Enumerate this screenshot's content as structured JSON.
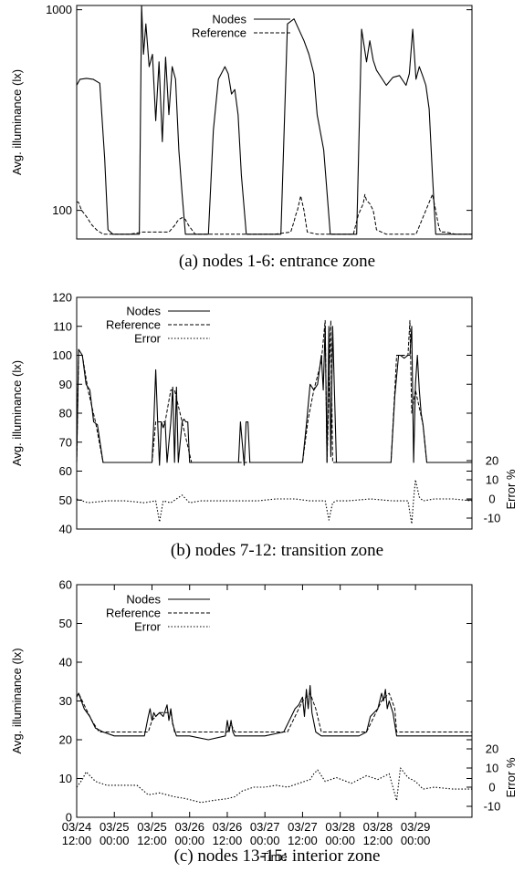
{
  "chart_data": [
    {
      "type": "line",
      "caption": "(a) nodes 1-6: entrance zone",
      "ylabel": "Avg. illuminance (lx)",
      "yscale": "log",
      "ylim": [
        72,
        1050
      ],
      "yticks": [
        {
          "v": 100,
          "label": "100"
        },
        {
          "v": 1000,
          "label": "1000"
        }
      ],
      "legend_position": "top-center",
      "series": [
        {
          "name": "Nodes",
          "style": "solid",
          "x": [
            0,
            0.1,
            0.3,
            0.5,
            0.7,
            0.85,
            0.95,
            1.1,
            1.5,
            1.9,
            1.97,
            2.03,
            2.1,
            2.2,
            2.3,
            2.4,
            2.5,
            2.6,
            2.7,
            2.8,
            2.9,
            3.0,
            3.1,
            3.2,
            3.3,
            3.4,
            3.5,
            3.6,
            3.7,
            4.0,
            4.15,
            4.3,
            4.5,
            4.6,
            4.7,
            4.8,
            4.9,
            5.0,
            5.15,
            5.3,
            5.4,
            5.5,
            5.6,
            5.7,
            5.9,
            6.2,
            6.4,
            6.6,
            6.9,
            7.05,
            7.2,
            7.3,
            7.5,
            7.7,
            7.9,
            8.05,
            8.2,
            8.35,
            8.5,
            8.65,
            8.8,
            8.9,
            9.0,
            9.1,
            9.4,
            9.6,
            9.8,
            10.0,
            10.1,
            10.2,
            10.3,
            10.4,
            10.5,
            10.6,
            10.7,
            10.8,
            10.9,
            11.0,
            11.1,
            11.2,
            11.5,
            12.0
          ],
          "y": [
            420,
            450,
            455,
            450,
            430,
            180,
            80,
            76,
            76,
            76,
            1050,
            600,
            850,
            520,
            600,
            280,
            550,
            220,
            580,
            300,
            520,
            450,
            200,
            120,
            76,
            76,
            76,
            76,
            76,
            76,
            250,
            450,
            520,
            480,
            380,
            400,
            300,
            150,
            76,
            76,
            76,
            76,
            76,
            76,
            76,
            76,
            850,
            900,
            700,
            600,
            480,
            300,
            200,
            76,
            76,
            76,
            76,
            76,
            76,
            800,
            550,
            700,
            560,
            500,
            420,
            460,
            470,
            420,
            480,
            800,
            450,
            520,
            470,
            420,
            320,
            150,
            76,
            76,
            76,
            76,
            76,
            76
          ]
        },
        {
          "name": "Reference",
          "style": "dashed",
          "x": [
            0,
            0.05,
            0.15,
            0.3,
            0.45,
            0.6,
            0.8,
            1.1,
            1.6,
            2.0,
            2.5,
            2.8,
            3.0,
            3.05,
            3.1,
            3.2,
            3.3,
            3.4,
            3.6,
            4.5,
            5.0,
            6.0,
            6.5,
            6.6,
            6.65,
            6.7,
            6.8,
            6.9,
            6.95,
            7.0,
            7.3,
            8.4,
            8.55,
            8.7,
            8.75,
            8.8,
            8.9,
            9.0,
            9.05,
            9.1,
            9.4,
            10.3,
            10.6,
            10.8,
            10.9,
            10.95,
            11.0,
            11.05,
            11.2,
            11.5,
            12.0
          ],
          "y": [
            110,
            110,
            100,
            93,
            85,
            80,
            76,
            76,
            76,
            78,
            78,
            78,
            85,
            88,
            90,
            92,
            90,
            84,
            76,
            76,
            76,
            76,
            78,
            88,
            95,
            100,
            118,
            100,
            88,
            78,
            76,
            76,
            95,
            108,
            120,
            112,
            108,
            100,
            90,
            80,
            76,
            76,
            100,
            120,
            100,
            90,
            82,
            78,
            78,
            76,
            76
          ]
        }
      ]
    },
    {
      "type": "line",
      "caption": "(b) nodes 7-12: transition zone",
      "ylabel": "Avg. illuminance (lx)",
      "ylim": [
        40,
        120
      ],
      "yticks": [
        40,
        50,
        60,
        70,
        80,
        90,
        100,
        110,
        120
      ],
      "y2label": "Error %",
      "y2ticks": [
        -10,
        0,
        10,
        20
      ],
      "y2lim": [
        -10,
        20
      ],
      "legend_position": "top-left",
      "series": [
        {
          "name": "Nodes",
          "style": "solid",
          "x": [
            0,
            0.05,
            0.15,
            0.25,
            0.35,
            0.45,
            0.55,
            0.7,
            1.2,
            2.0,
            2.05,
            2.1,
            2.15,
            2.2,
            2.25,
            2.3,
            2.35,
            2.4,
            2.5,
            2.55,
            2.6,
            2.65,
            2.7,
            2.8,
            2.85,
            2.9,
            2.95,
            3.0,
            3.05,
            3.1,
            3.2,
            4.2,
            4.3,
            4.35,
            4.45,
            4.5,
            4.55,
            4.6,
            4.7,
            5.5,
            6.0,
            6.1,
            6.2,
            6.3,
            6.4,
            6.5,
            6.55,
            6.6,
            6.65,
            6.7,
            6.75,
            6.8,
            6.9,
            7.0,
            7.05,
            7.1,
            7.2,
            7.3,
            8.0,
            8.35,
            8.45,
            8.55,
            8.6,
            8.7,
            8.8,
            8.85,
            8.9,
            8.95,
            9.0,
            9.05,
            9.1,
            9.15,
            9.2,
            9.3,
            9.6,
            10.0,
            10.5
          ],
          "y": [
            63,
            102,
            100,
            90,
            88,
            77,
            76,
            63,
            63,
            63,
            77,
            95,
            77,
            62,
            77,
            75,
            77,
            63,
            77,
            89,
            63,
            89,
            63,
            77,
            78,
            77,
            77,
            63,
            63,
            63,
            63,
            63,
            63,
            77,
            62,
            77,
            77,
            63,
            63,
            63,
            63,
            76,
            90,
            88,
            90,
            100,
            88,
            110,
            63,
            110,
            65,
            110,
            63,
            63,
            63,
            63,
            63,
            63,
            63,
            63,
            86,
            100,
            100,
            99,
            100,
            100,
            110,
            63,
            90,
            100,
            88,
            80,
            76,
            63,
            63,
            63,
            63
          ]
        },
        {
          "name": "Reference",
          "style": "dashed",
          "x": [
            0,
            0.05,
            0.15,
            0.3,
            0.5,
            0.7,
            1.5,
            2.0,
            2.1,
            2.2,
            2.35,
            2.5,
            2.6,
            2.8,
            3.05,
            4.3,
            4.6,
            6.0,
            6.15,
            6.3,
            6.5,
            6.6,
            6.65,
            6.75,
            6.8,
            6.95,
            8.35,
            8.5,
            8.8,
            8.85,
            8.9,
            9.0,
            9.2,
            9.3,
            10.5
          ],
          "y": [
            63,
            100,
            100,
            88,
            77,
            63,
            63,
            63,
            77,
            77,
            77,
            88,
            88,
            77,
            63,
            63,
            63,
            63,
            78,
            88,
            98,
            112,
            63,
            112,
            63,
            63,
            63,
            100,
            100,
            112,
            80,
            88,
            76,
            63,
            63
          ]
        },
        {
          "name": "Error",
          "style": "dotted",
          "axis": "y2",
          "x": [
            0,
            0.3,
            0.8,
            1.3,
            1.8,
            2.1,
            2.2,
            2.3,
            2.5,
            2.8,
            3.0,
            3.3,
            3.8,
            4.3,
            4.8,
            5.3,
            5.8,
            6.2,
            6.6,
            6.7,
            6.8,
            6.9,
            7.2,
            7.8,
            8.4,
            8.8,
            8.9,
            8.95,
            9.0,
            9.1,
            9.2,
            9.5,
            10.0,
            10.5
          ],
          "y": [
            0,
            -2,
            -1,
            -1,
            -2,
            -1,
            -12,
            -1,
            -2,
            2,
            -2,
            -1,
            -1,
            -1,
            -1,
            0,
            0,
            -1,
            -1,
            -11,
            -2,
            -1,
            -1,
            0,
            -1,
            -1,
            -13,
            0,
            10,
            1,
            -1,
            0,
            0,
            -1
          ]
        }
      ]
    },
    {
      "type": "line",
      "caption": "(c) nodes 13-15: interior zone",
      "ylabel": "Avg. illuminance (lx)",
      "xlabel": "Time",
      "xlim": [
        0,
        10.5
      ],
      "xticks": [
        {
          "v": 0,
          "label": [
            "03/24",
            "12:00"
          ]
        },
        {
          "v": 1,
          "label": [
            "03/25",
            "00:00"
          ]
        },
        {
          "v": 2,
          "label": [
            "03/25",
            "12:00"
          ]
        },
        {
          "v": 3,
          "label": [
            "03/26",
            "00:00"
          ]
        },
        {
          "v": 4,
          "label": [
            "03/26",
            "12:00"
          ]
        },
        {
          "v": 5,
          "label": [
            "03/27",
            "00:00"
          ]
        },
        {
          "v": 6,
          "label": [
            "03/27",
            "12:00"
          ]
        },
        {
          "v": 7,
          "label": [
            "03/28",
            "00:00"
          ]
        },
        {
          "v": 8,
          "label": [
            "03/28",
            "12:00"
          ]
        },
        {
          "v": 9,
          "label": [
            "03/29",
            "00:00"
          ]
        }
      ],
      "ylim": [
        0,
        60
      ],
      "yticks": [
        0,
        10,
        20,
        30,
        40,
        50,
        60
      ],
      "y2label": "Error %",
      "y2ticks": [
        -10,
        0,
        10,
        20
      ],
      "y2lim": [
        -10,
        20
      ],
      "legend_position": "top-left",
      "series": [
        {
          "name": "Nodes",
          "style": "solid",
          "x": [
            0,
            0.05,
            0.2,
            0.35,
            0.5,
            0.7,
            1.0,
            1.4,
            1.6,
            1.8,
            1.9,
            1.95,
            2.0,
            2.05,
            2.1,
            2.2,
            2.3,
            2.4,
            2.45,
            2.5,
            2.55,
            2.65,
            3.0,
            3.5,
            3.95,
            4.0,
            4.05,
            4.1,
            4.15,
            4.2,
            4.3,
            4.5,
            5.0,
            5.5,
            5.7,
            5.8,
            5.9,
            6.0,
            6.05,
            6.1,
            6.15,
            6.2,
            6.25,
            6.35,
            6.5,
            7.0,
            7.5,
            7.7,
            7.8,
            7.9,
            8.0,
            8.1,
            8.15,
            8.2,
            8.25,
            8.3,
            8.4,
            8.5,
            9.0,
            9.5,
            10.0,
            10.5
          ],
          "y": [
            31,
            32,
            28,
            26,
            23,
            22,
            21,
            21,
            21,
            21,
            26,
            28,
            25,
            27,
            26,
            27,
            26,
            29,
            25,
            28,
            24,
            21,
            21,
            20,
            21,
            25,
            22,
            25,
            22,
            21,
            21,
            21,
            21,
            22,
            26,
            28,
            29,
            31,
            26,
            33,
            28,
            34,
            27,
            22,
            21,
            21,
            21,
            22,
            26,
            27,
            28,
            32,
            30,
            33,
            28,
            30,
            27,
            21,
            21,
            21,
            21,
            21
          ]
        },
        {
          "name": "Reference",
          "style": "dashed",
          "x": [
            0,
            0.05,
            0.2,
            0.4,
            0.6,
            1.0,
            1.9,
            2.0,
            2.2,
            2.5,
            2.6,
            4.0,
            4.1,
            4.2,
            5.6,
            5.8,
            6.0,
            6.2,
            6.35,
            6.5,
            7.7,
            7.9,
            8.1,
            8.3,
            8.45,
            8.5,
            9.0,
            10.5
          ],
          "y": [
            31,
            32,
            29,
            25,
            22,
            22,
            22,
            25,
            27,
            27,
            22,
            22,
            24,
            22,
            22,
            26,
            30,
            32,
            28,
            22,
            22,
            26,
            30,
            32,
            28,
            22,
            22,
            22
          ]
        },
        {
          "name": "Error",
          "style": "dotted",
          "axis": "y2",
          "x": [
            0,
            0.15,
            0.25,
            0.5,
            0.8,
            1.3,
            1.6,
            1.9,
            2.2,
            2.4,
            2.6,
            2.9,
            3.3,
            3.6,
            4.0,
            4.2,
            4.4,
            4.7,
            5.0,
            5.3,
            5.6,
            5.9,
            6.2,
            6.3,
            6.4,
            6.6,
            6.9,
            7.3,
            7.7,
            8.0,
            8.3,
            8.5,
            8.6,
            8.8,
            9.0,
            9.2,
            9.5,
            10.0,
            10.5
          ],
          "y": [
            0,
            4,
            8,
            3,
            1,
            1,
            1,
            -4,
            -3,
            -4,
            -5,
            -6,
            -8,
            -7,
            -6,
            -5,
            -2,
            0,
            0,
            1,
            0,
            2,
            4,
            7,
            9,
            3,
            5,
            2,
            6,
            4,
            7,
            -7,
            10,
            5,
            3,
            -1,
            0,
            -1,
            -1
          ]
        }
      ]
    }
  ]
}
